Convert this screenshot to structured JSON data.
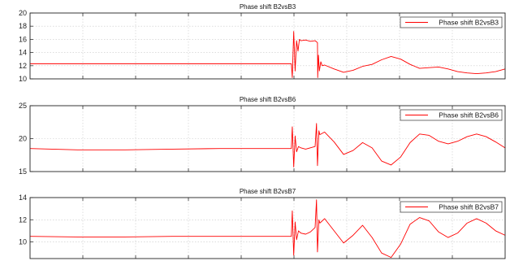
{
  "chart_data": [
    {
      "type": "line",
      "title": "Phase shift B2vsB3",
      "xlabel": "",
      "ylabel": "",
      "ylim": [
        10,
        20
      ],
      "yticks": [
        10,
        12,
        14,
        16,
        18,
        20
      ],
      "xticks_count": 9,
      "grid": true,
      "legend_position": "top-right",
      "series": [
        {
          "name": "Phase shift B2vsB3",
          "color": "#ff0000",
          "x": [
            0,
            0.5,
            0.55,
            0.552,
            0.555,
            0.558,
            0.561,
            0.564,
            0.567,
            0.57,
            0.58,
            0.59,
            0.6,
            0.605,
            0.6055,
            0.607,
            0.609,
            0.612,
            0.615,
            0.62,
            0.64,
            0.66,
            0.68,
            0.7,
            0.72,
            0.74,
            0.76,
            0.78,
            0.8,
            0.82,
            0.84,
            0.86,
            0.88,
            0.9,
            0.92,
            0.94,
            0.96,
            0.98,
            1.0
          ],
          "y": [
            12.3,
            12.3,
            12.3,
            10.2,
            17.2,
            11.2,
            15.8,
            14.2,
            16.0,
            15.8,
            15.9,
            15.7,
            15.8,
            15.5,
            10.2,
            13.6,
            11.2,
            12.6,
            12.0,
            12.1,
            11.5,
            11.0,
            11.3,
            11.9,
            12.2,
            12.9,
            13.4,
            13.0,
            12.2,
            11.6,
            11.7,
            11.8,
            11.5,
            11.1,
            10.9,
            10.8,
            10.9,
            11.1,
            11.5
          ]
        }
      ]
    },
    {
      "type": "line",
      "title": "Phase shift B2vsB6",
      "xlabel": "",
      "ylabel": "",
      "ylim": [
        15,
        25
      ],
      "yticks": [
        15,
        20,
        25
      ],
      "xticks_count": 9,
      "grid": true,
      "legend_position": "top-right",
      "series": [
        {
          "name": "Phase shift B2vsB6",
          "color": "#ff0000",
          "x": [
            0,
            0.1,
            0.2,
            0.3,
            0.4,
            0.5,
            0.55,
            0.552,
            0.555,
            0.558,
            0.561,
            0.565,
            0.57,
            0.58,
            0.59,
            0.6,
            0.603,
            0.605,
            0.608,
            0.61,
            0.62,
            0.64,
            0.66,
            0.68,
            0.7,
            0.72,
            0.74,
            0.76,
            0.78,
            0.8,
            0.82,
            0.84,
            0.86,
            0.88,
            0.9,
            0.92,
            0.94,
            0.96,
            0.98,
            1.0
          ],
          "y": [
            18.5,
            18.3,
            18.3,
            18.4,
            18.5,
            18.5,
            18.5,
            21.8,
            15.7,
            20.4,
            18.0,
            18.8,
            18.6,
            18.4,
            18.6,
            18.8,
            22.3,
            15.9,
            21.2,
            20.6,
            21.0,
            19.5,
            17.6,
            18.2,
            19.4,
            18.6,
            16.6,
            16.0,
            17.2,
            19.4,
            20.7,
            20.5,
            19.6,
            19.2,
            19.6,
            20.3,
            20.7,
            20.3,
            19.5,
            18.6
          ]
        }
      ]
    },
    {
      "type": "line",
      "title": "Phase shift B2vsB7",
      "xlabel": "",
      "ylabel": "",
      "ylim": [
        8.5,
        14
      ],
      "yticks": [
        10,
        12,
        14
      ],
      "xticks_count": 9,
      "grid": true,
      "legend_position": "top-right",
      "series": [
        {
          "name": "Phase shift B2vsB7",
          "color": "#ff0000",
          "x": [
            0,
            0.1,
            0.2,
            0.3,
            0.4,
            0.5,
            0.55,
            0.552,
            0.555,
            0.558,
            0.561,
            0.565,
            0.57,
            0.58,
            0.59,
            0.6,
            0.603,
            0.605,
            0.608,
            0.61,
            0.62,
            0.64,
            0.66,
            0.68,
            0.7,
            0.72,
            0.74,
            0.76,
            0.78,
            0.8,
            0.82,
            0.84,
            0.86,
            0.88,
            0.9,
            0.92,
            0.94,
            0.96,
            0.98,
            1.0
          ],
          "y": [
            10.5,
            10.45,
            10.45,
            10.5,
            10.5,
            10.5,
            10.5,
            12.8,
            8.8,
            11.8,
            10.2,
            11.0,
            10.8,
            10.7,
            10.9,
            11.3,
            13.8,
            9.1,
            12.0,
            11.7,
            12.1,
            11.0,
            9.9,
            10.6,
            11.5,
            10.4,
            9.0,
            8.6,
            9.8,
            11.6,
            12.2,
            11.9,
            10.9,
            10.4,
            10.8,
            11.7,
            12.1,
            11.7,
            11.0,
            10.6
          ]
        }
      ]
    }
  ]
}
